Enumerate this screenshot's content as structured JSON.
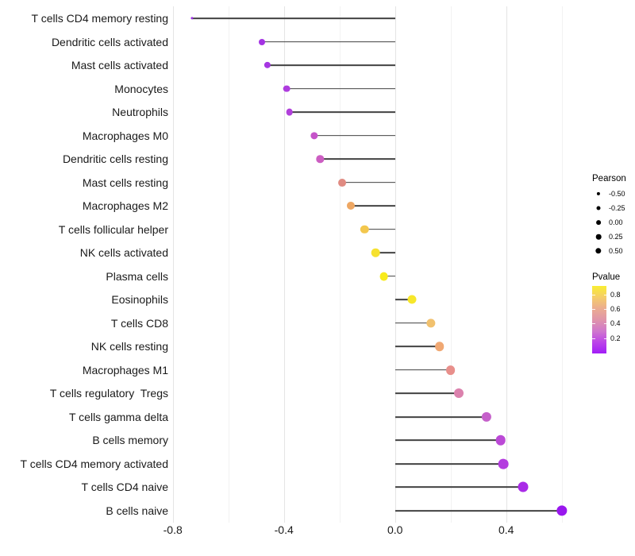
{
  "chart_data": {
    "type": "scatter",
    "variant": "lollipop-horizontal",
    "title": "",
    "xlabel": "",
    "ylabel": "",
    "xlim": [
      -0.8,
      0.67
    ],
    "grid": "vertical-only",
    "x_ticks": [
      -0.8,
      -0.4,
      0.0,
      0.4
    ],
    "x_tick_labels": [
      "-0.8",
      "-0.4",
      "0.0",
      "0.4"
    ],
    "x_minor_gridlines": [
      -0.6,
      -0.2,
      0.2,
      0.6
    ],
    "stem_color": "#414141",
    "points": [
      {
        "label": "T cells CD4 memory resting",
        "pearson": -0.73,
        "color": "#9c2fe3",
        "diameter": 3.2
      },
      {
        "label": "Dendritic cells activated",
        "pearson": -0.48,
        "color": "#a433e3",
        "diameter": 8.0
      },
      {
        "label": "Mast cells activated",
        "pearson": -0.46,
        "color": "#a636e2",
        "diameter": 8.3
      },
      {
        "label": "Monocytes",
        "pearson": -0.39,
        "color": "#ae3cde",
        "diameter": 8.7
      },
      {
        "label": "Neutrophils",
        "pearson": -0.38,
        "color": "#b140db",
        "diameter": 8.7
      },
      {
        "label": "Macrophages M0",
        "pearson": -0.29,
        "color": "#c554c9",
        "diameter": 9.3
      },
      {
        "label": "Dendritic cells resting",
        "pearson": -0.27,
        "color": "#cc5ec2",
        "diameter": 9.4
      },
      {
        "label": "Mast cells resting",
        "pearson": -0.19,
        "color": "#e08b82",
        "diameter": 9.9
      },
      {
        "label": "Macrophages M2",
        "pearson": -0.16,
        "color": "#eea763",
        "diameter": 10.1
      },
      {
        "label": "T cells follicular helper",
        "pearson": -0.11,
        "color": "#f3c74d",
        "diameter": 10.4
      },
      {
        "label": "NK cells activated",
        "pearson": -0.07,
        "color": "#f6e12f",
        "diameter": 10.6
      },
      {
        "label": "Plasma cells",
        "pearson": -0.04,
        "color": "#f8eb1c",
        "diameter": 10.8
      },
      {
        "label": "Eosinophils",
        "pearson": 0.06,
        "color": "#f7e72b",
        "diameter": 11.0
      },
      {
        "label": "T cells CD8",
        "pearson": 0.13,
        "color": "#f1c16e",
        "diameter": 11.3
      },
      {
        "label": "NK cells resting",
        "pearson": 0.16,
        "color": "#f0a873",
        "diameter": 11.6
      },
      {
        "label": "Macrophages M1",
        "pearson": 0.2,
        "color": "#e88f8b",
        "diameter": 11.8
      },
      {
        "label": "T cells regulatory  Tregs",
        "pearson": 0.23,
        "color": "#db81ad",
        "diameter": 12.0
      },
      {
        "label": "T cells gamma delta",
        "pearson": 0.33,
        "color": "#c560ca",
        "diameter": 12.2
      },
      {
        "label": "B cells memory",
        "pearson": 0.38,
        "color": "#bb49d6",
        "diameter": 12.6
      },
      {
        "label": "T cells CD4 memory activated",
        "pearson": 0.39,
        "color": "#b43cdf",
        "diameter": 12.7
      },
      {
        "label": "T cells CD4 naive",
        "pearson": 0.46,
        "color": "#a92be7",
        "diameter": 13.0
      },
      {
        "label": "B cells naive",
        "pearson": 0.6,
        "color": "#9917ee",
        "diameter": 13.3
      }
    ]
  },
  "legend": {
    "pearson": {
      "title": "Pearson",
      "entries": [
        {
          "label": "-0.50",
          "diameter": 4.2
        },
        {
          "label": "-0.25",
          "diameter": 5.0
        },
        {
          "label": "0.00",
          "diameter": 5.8
        },
        {
          "label": "0.25",
          "diameter": 6.6
        },
        {
          "label": "0.50",
          "diameter": 7.4
        }
      ],
      "dot_color": "#000000"
    },
    "pvalue": {
      "title": "Pvalue",
      "tick_labels": [
        "0.8",
        "0.6",
        "0.4",
        "0.2"
      ],
      "gradient_stops": [
        "#f9ed32",
        "#f5cd69",
        "#ebac90",
        "#e095aa",
        "#d078cc",
        "#bc45e8",
        "#a21df7"
      ]
    }
  }
}
